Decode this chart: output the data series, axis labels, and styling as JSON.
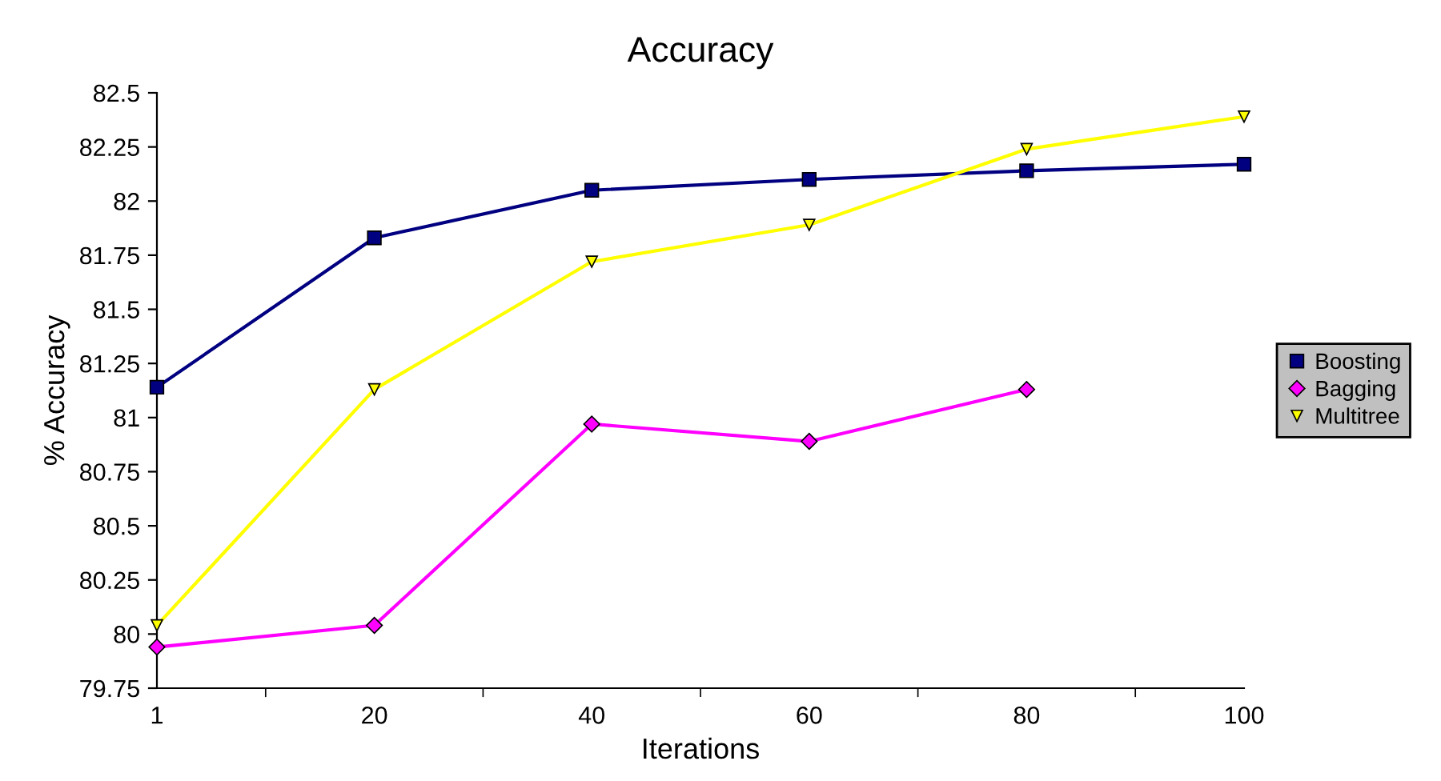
{
  "chart_data": {
    "type": "line",
    "title": "Accuracy",
    "xlabel": "Iterations",
    "ylabel": "% Accuracy",
    "categories": [
      "1",
      "20",
      "40",
      "60",
      "80",
      "100"
    ],
    "series": [
      {
        "name": "Boosting",
        "color": "#000080",
        "marker": "square",
        "values": [
          81.14,
          81.83,
          82.05,
          82.1,
          82.14,
          82.17
        ]
      },
      {
        "name": "Bagging",
        "color": "#ff00ff",
        "marker": "diamond",
        "values": [
          79.94,
          80.04,
          80.97,
          80.89,
          81.13,
          null
        ]
      },
      {
        "name": "Multitree",
        "color": "#ffff00",
        "marker": "triangle",
        "values": [
          80.04,
          81.13,
          81.72,
          81.89,
          82.24,
          82.39
        ]
      }
    ],
    "ylim": [
      79.75,
      82.5
    ],
    "yticks": [
      79.75,
      80,
      80.25,
      80.5,
      80.75,
      81,
      81.25,
      81.5,
      81.75,
      82,
      82.25,
      82.5
    ],
    "grid": false,
    "legend": "right",
    "line_style": "solid"
  }
}
